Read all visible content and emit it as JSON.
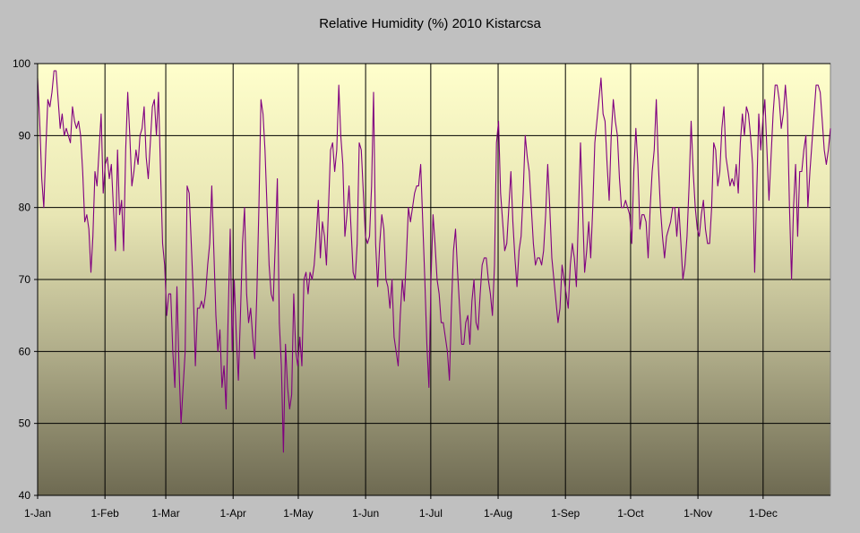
{
  "chart_data": {
    "type": "line",
    "title": "Relative Humidity (%) 2010 Kistarcsa",
    "xlabel": "",
    "ylabel": "",
    "x_axis": {
      "range_days": [
        0,
        365
      ],
      "tick_days": [
        0,
        31,
        59,
        90,
        120,
        151,
        181,
        212,
        243,
        273,
        304,
        334
      ],
      "tick_labels": [
        "1-Jan",
        "1-Feb",
        "1-Mar",
        "1-Apr",
        "1-May",
        "1-Jun",
        "1-Jul",
        "1-Aug",
        "1-Sep",
        "1-Oct",
        "1-Nov",
        "1-Dec"
      ]
    },
    "ylim": [
      40,
      100
    ],
    "y_ticks": [
      40,
      50,
      60,
      70,
      80,
      90,
      100
    ],
    "grid": true,
    "legend": "none",
    "colors": {
      "line": "#800080",
      "plot_top": "#ffffcc",
      "plot_bottom": "#6e6a52",
      "background": "#c0c0c0",
      "grid": "#000000"
    },
    "series": [
      {
        "values": [
          98,
          92,
          84,
          80,
          88,
          95,
          94,
          96,
          99,
          99,
          95,
          91,
          93,
          90,
          91,
          90,
          89,
          94,
          92,
          91,
          92,
          90,
          85,
          78,
          79,
          77,
          71,
          76,
          85,
          83,
          88,
          93,
          82,
          86,
          87,
          84,
          86,
          80,
          74,
          88,
          79,
          81,
          74,
          88,
          96,
          90,
          83,
          85,
          88,
          86,
          90,
          91,
          94,
          87,
          84,
          89,
          94,
          95,
          90,
          96,
          85,
          75,
          72,
          65,
          68,
          68,
          60,
          55,
          69,
          58,
          50,
          55,
          60,
          83,
          82,
          75,
          68,
          58,
          66,
          66,
          67,
          66,
          68,
          72,
          75,
          83,
          74,
          65,
          60,
          63,
          55,
          58,
          52,
          65,
          77,
          60,
          70,
          62,
          56,
          65,
          75,
          80,
          68,
          64,
          66,
          62,
          59,
          68,
          80,
          95,
          93,
          88,
          80,
          72,
          68,
          67,
          75,
          84,
          64,
          58,
          46,
          61,
          55,
          52,
          54,
          68,
          60,
          58,
          62,
          58,
          70,
          71,
          68,
          71,
          70,
          72,
          76,
          81,
          73,
          78,
          76,
          72,
          80,
          88,
          89,
          85,
          88,
          97,
          90,
          86,
          76,
          79,
          83,
          77,
          71,
          70,
          75,
          89,
          88,
          82,
          76,
          75,
          76,
          83,
          96,
          75,
          69,
          75,
          79,
          77,
          70,
          69,
          66,
          70,
          62,
          60,
          58,
          65,
          70,
          67,
          73,
          80,
          78,
          80,
          82,
          83,
          83,
          86,
          78,
          70,
          61,
          55,
          70,
          79,
          75,
          70,
          68,
          64,
          64,
          62,
          60,
          56,
          66,
          74,
          77,
          71,
          66,
          61,
          61,
          64,
          65,
          61,
          67,
          70,
          64,
          63,
          68,
          72,
          73,
          73,
          70,
          68,
          65,
          72,
          89,
          92,
          82,
          78,
          74,
          75,
          80,
          85,
          78,
          73,
          69,
          74,
          76,
          82,
          90,
          87,
          85,
          80,
          75,
          72,
          73,
          73,
          72,
          74,
          79,
          86,
          80,
          73,
          70,
          67,
          64,
          66,
          72,
          70,
          68,
          66,
          72,
          75,
          73,
          69,
          79,
          89,
          80,
          71,
          74,
          78,
          73,
          80,
          89,
          92,
          95,
          98,
          93,
          92,
          86,
          81,
          90,
          95,
          92,
          90,
          84,
          80,
          80,
          81,
          80,
          79,
          75,
          85,
          91,
          86,
          77,
          79,
          79,
          78,
          73,
          80,
          85,
          88,
          95,
          86,
          80,
          76,
          73,
          76,
          77,
          78,
          80,
          80,
          76,
          80,
          75,
          70,
          72,
          76,
          83,
          92,
          85,
          80,
          77,
          76,
          79,
          81,
          77,
          75,
          75,
          80,
          89,
          88,
          83,
          85,
          91,
          94,
          87,
          85,
          83,
          84,
          83,
          86,
          82,
          89,
          93,
          90,
          94,
          93,
          90,
          86,
          71,
          82,
          93,
          88,
          92,
          95,
          88,
          81,
          87,
          93,
          97,
          97,
          95,
          91,
          93,
          97,
          93,
          80,
          70,
          80,
          86,
          76,
          85,
          85,
          88,
          90,
          80,
          85,
          89,
          93,
          97,
          97,
          96,
          92,
          88,
          86,
          88,
          91
        ]
      }
    ]
  }
}
